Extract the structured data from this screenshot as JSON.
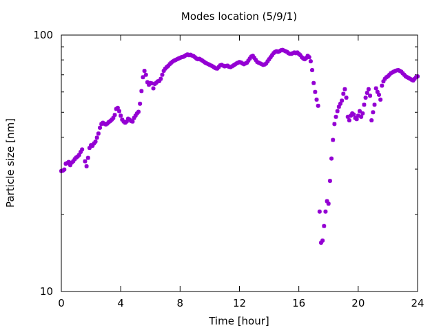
{
  "chart_data": {
    "type": "scatter",
    "title": "Modes location (5/9/1)",
    "xlabel": "Time [hour]",
    "ylabel": "Particle size [nm]",
    "xlim": [
      0,
      24
    ],
    "ylim": [
      10,
      100
    ],
    "yscale": "log",
    "xticks": [
      0,
      4,
      8,
      12,
      16,
      20,
      24
    ],
    "yticks": [
      10,
      100
    ],
    "grid": false,
    "legend": "none",
    "marker_color": "#9400d3",
    "series": [
      {
        "points": [
          [
            0.0,
            29.5
          ],
          [
            0.1,
            29.6
          ],
          [
            0.2,
            29.9
          ],
          [
            0.3,
            31.5
          ],
          [
            0.4,
            31.7
          ],
          [
            0.5,
            32.0
          ],
          [
            0.6,
            31.1
          ],
          [
            0.7,
            31.8
          ],
          [
            0.8,
            32.2
          ],
          [
            0.9,
            32.8
          ],
          [
            1.0,
            33.3
          ],
          [
            1.1,
            33.6
          ],
          [
            1.2,
            34.1
          ],
          [
            1.3,
            35.0
          ],
          [
            1.4,
            35.8
          ],
          [
            1.6,
            32.2
          ],
          [
            1.7,
            30.8
          ],
          [
            1.8,
            33.2
          ],
          [
            1.9,
            36.3
          ],
          [
            2.0,
            37.2
          ],
          [
            2.1,
            37.0
          ],
          [
            2.2,
            37.8
          ],
          [
            2.3,
            38.4
          ],
          [
            2.4,
            39.8
          ],
          [
            2.5,
            41.3
          ],
          [
            2.6,
            43.5
          ],
          [
            2.7,
            45.0
          ],
          [
            2.8,
            45.5
          ],
          [
            2.9,
            45.1
          ],
          [
            3.0,
            44.8
          ],
          [
            3.1,
            45.2
          ],
          [
            3.2,
            45.8
          ],
          [
            3.3,
            46.2
          ],
          [
            3.4,
            46.8
          ],
          [
            3.5,
            47.5
          ],
          [
            3.6,
            48.8
          ],
          [
            3.7,
            51.5
          ],
          [
            3.8,
            52.0
          ],
          [
            3.9,
            50.5
          ],
          [
            4.0,
            48.5
          ],
          [
            4.1,
            46.8
          ],
          [
            4.2,
            46.0
          ],
          [
            4.3,
            45.5
          ],
          [
            4.4,
            46.0
          ],
          [
            4.5,
            47.2
          ],
          [
            4.6,
            46.8
          ],
          [
            4.7,
            46.2
          ],
          [
            4.8,
            46.0
          ],
          [
            4.9,
            47.5
          ],
          [
            5.0,
            48.5
          ],
          [
            5.1,
            49.5
          ],
          [
            5.2,
            50.2
          ],
          [
            5.3,
            54.0
          ],
          [
            5.4,
            60.5
          ],
          [
            5.5,
            68.5
          ],
          [
            5.6,
            72.5
          ],
          [
            5.7,
            70.0
          ],
          [
            5.8,
            65.5
          ],
          [
            5.9,
            64.0
          ],
          [
            6.0,
            65.0
          ],
          [
            6.1,
            64.8
          ],
          [
            6.2,
            62.0
          ],
          [
            6.3,
            64.5
          ],
          [
            6.4,
            65.2
          ],
          [
            6.5,
            66.0
          ],
          [
            6.6,
            66.2
          ],
          [
            6.7,
            67.5
          ],
          [
            6.8,
            70.0
          ],
          [
            6.9,
            72.5
          ],
          [
            7.0,
            74.0
          ],
          [
            7.1,
            75.0
          ],
          [
            7.2,
            75.8
          ],
          [
            7.3,
            77.0
          ],
          [
            7.4,
            78.0
          ],
          [
            7.5,
            78.8
          ],
          [
            7.6,
            79.5
          ],
          [
            7.7,
            80.0
          ],
          [
            7.8,
            80.5
          ],
          [
            7.9,
            81.0
          ],
          [
            8.0,
            81.5
          ],
          [
            8.1,
            82.0
          ],
          [
            8.2,
            82.2
          ],
          [
            8.3,
            82.8
          ],
          [
            8.4,
            83.5
          ],
          [
            8.5,
            84.0
          ],
          [
            8.6,
            83.5
          ],
          [
            8.7,
            83.8
          ],
          [
            8.8,
            83.2
          ],
          [
            8.9,
            82.8
          ],
          [
            9.0,
            82.0
          ],
          [
            9.1,
            81.0
          ],
          [
            9.2,
            80.5
          ],
          [
            9.3,
            80.8
          ],
          [
            9.4,
            80.2
          ],
          [
            9.5,
            79.5
          ],
          [
            9.6,
            78.8
          ],
          [
            9.7,
            78.0
          ],
          [
            9.8,
            77.5
          ],
          [
            9.9,
            77.0
          ],
          [
            10.0,
            76.5
          ],
          [
            10.1,
            76.0
          ],
          [
            10.2,
            75.5
          ],
          [
            10.3,
            74.8
          ],
          [
            10.4,
            74.2
          ],
          [
            10.5,
            74.0
          ],
          [
            10.6,
            75.0
          ],
          [
            10.7,
            76.2
          ],
          [
            10.8,
            76.5
          ],
          [
            10.9,
            76.0
          ],
          [
            11.0,
            75.5
          ],
          [
            11.1,
            75.8
          ],
          [
            11.2,
            76.0
          ],
          [
            11.3,
            75.2
          ],
          [
            11.4,
            75.0
          ],
          [
            11.5,
            75.5
          ],
          [
            11.6,
            76.2
          ],
          [
            11.7,
            76.8
          ],
          [
            11.8,
            77.5
          ],
          [
            11.9,
            78.0
          ],
          [
            12.0,
            78.5
          ],
          [
            12.1,
            78.2
          ],
          [
            12.2,
            77.5
          ],
          [
            12.3,
            77.0
          ],
          [
            12.4,
            77.5
          ],
          [
            12.5,
            78.0
          ],
          [
            12.6,
            79.5
          ],
          [
            12.7,
            81.0
          ],
          [
            12.8,
            82.5
          ],
          [
            12.9,
            83.0
          ],
          [
            13.0,
            81.5
          ],
          [
            13.1,
            80.0
          ],
          [
            13.2,
            78.5
          ],
          [
            13.3,
            78.0
          ],
          [
            13.4,
            77.5
          ],
          [
            13.5,
            77.0
          ],
          [
            13.6,
            76.5
          ],
          [
            13.7,
            76.8
          ],
          [
            13.8,
            77.5
          ],
          [
            13.9,
            79.0
          ],
          [
            14.0,
            80.5
          ],
          [
            14.1,
            82.0
          ],
          [
            14.2,
            83.5
          ],
          [
            14.3,
            85.0
          ],
          [
            14.4,
            86.0
          ],
          [
            14.5,
            86.5
          ],
          [
            14.6,
            86.0
          ],
          [
            14.7,
            86.5
          ],
          [
            14.8,
            87.2
          ],
          [
            14.9,
            87.5
          ],
          [
            15.0,
            87.0
          ],
          [
            15.1,
            86.5
          ],
          [
            15.2,
            86.0
          ],
          [
            15.3,
            85.0
          ],
          [
            15.4,
            84.5
          ],
          [
            15.5,
            84.5
          ],
          [
            15.6,
            85.0
          ],
          [
            15.7,
            85.5
          ],
          [
            15.8,
            85.0
          ],
          [
            15.9,
            85.5
          ],
          [
            16.0,
            84.5
          ],
          [
            16.1,
            83.5
          ],
          [
            16.2,
            82.0
          ],
          [
            16.3,
            81.0
          ],
          [
            16.4,
            80.5
          ],
          [
            16.5,
            81.5
          ],
          [
            16.6,
            83.0
          ],
          [
            16.7,
            82.0
          ],
          [
            16.8,
            79.0
          ],
          [
            16.9,
            73.0
          ],
          [
            17.0,
            65.0
          ],
          [
            17.1,
            60.0
          ],
          [
            17.2,
            56.0
          ],
          [
            17.3,
            53.0
          ],
          [
            17.4,
            20.5
          ],
          [
            17.5,
            15.5
          ],
          [
            17.6,
            15.8
          ],
          [
            17.7,
            18.0
          ],
          [
            17.8,
            20.5
          ],
          [
            17.9,
            22.5
          ],
          [
            18.0,
            22.0
          ],
          [
            18.1,
            27.0
          ],
          [
            18.2,
            33.0
          ],
          [
            18.3,
            39.0
          ],
          [
            18.4,
            45.0
          ],
          [
            18.5,
            48.0
          ],
          [
            18.6,
            50.5
          ],
          [
            18.7,
            52.5
          ],
          [
            18.8,
            54.0
          ],
          [
            18.9,
            55.5
          ],
          [
            19.0,
            59.0
          ],
          [
            19.1,
            61.5
          ],
          [
            19.2,
            57.0
          ],
          [
            19.3,
            48.0
          ],
          [
            19.4,
            46.5
          ],
          [
            19.5,
            48.5
          ],
          [
            19.6,
            49.5
          ],
          [
            19.7,
            49.0
          ],
          [
            19.8,
            47.5
          ],
          [
            19.9,
            47.0
          ],
          [
            20.0,
            48.5
          ],
          [
            20.1,
            50.5
          ],
          [
            20.2,
            48.0
          ],
          [
            20.3,
            49.5
          ],
          [
            20.4,
            53.5
          ],
          [
            20.5,
            57.0
          ],
          [
            20.6,
            59.5
          ],
          [
            20.7,
            61.5
          ],
          [
            20.8,
            58.0
          ],
          [
            20.9,
            46.5
          ],
          [
            21.0,
            50.0
          ],
          [
            21.1,
            53.5
          ],
          [
            21.2,
            62.0
          ],
          [
            21.3,
            60.0
          ],
          [
            21.4,
            58.5
          ],
          [
            21.5,
            56.0
          ],
          [
            21.6,
            63.5
          ],
          [
            21.7,
            66.0
          ],
          [
            21.8,
            67.5
          ],
          [
            21.9,
            68.5
          ],
          [
            22.0,
            69.0
          ],
          [
            22.1,
            70.0
          ],
          [
            22.2,
            71.0
          ],
          [
            22.3,
            71.5
          ],
          [
            22.4,
            72.0
          ],
          [
            22.5,
            72.5
          ],
          [
            22.6,
            72.8
          ],
          [
            22.7,
            73.0
          ],
          [
            22.8,
            72.5
          ],
          [
            22.9,
            72.0
          ],
          [
            23.0,
            71.0
          ],
          [
            23.1,
            70.0
          ],
          [
            23.2,
            69.0
          ],
          [
            23.3,
            68.5
          ],
          [
            23.4,
            68.0
          ],
          [
            23.5,
            67.5
          ],
          [
            23.6,
            67.0
          ],
          [
            23.7,
            66.5
          ],
          [
            23.8,
            67.5
          ],
          [
            23.9,
            68.5
          ],
          [
            24.0,
            69.0
          ]
        ]
      }
    ]
  }
}
